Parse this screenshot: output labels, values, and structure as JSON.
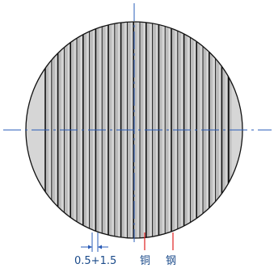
{
  "labels": {
    "dimension": "0.5+1.5",
    "copper": "铜",
    "steel": "钢"
  },
  "colors": {
    "outline": "#111111",
    "shade": "#d6d6d6",
    "strip": "#bcbcbc",
    "centerline": "#2a5cb8",
    "leader": "#e02020",
    "dimension": "#2a5cb8",
    "label": "#1a4a8a"
  }
}
